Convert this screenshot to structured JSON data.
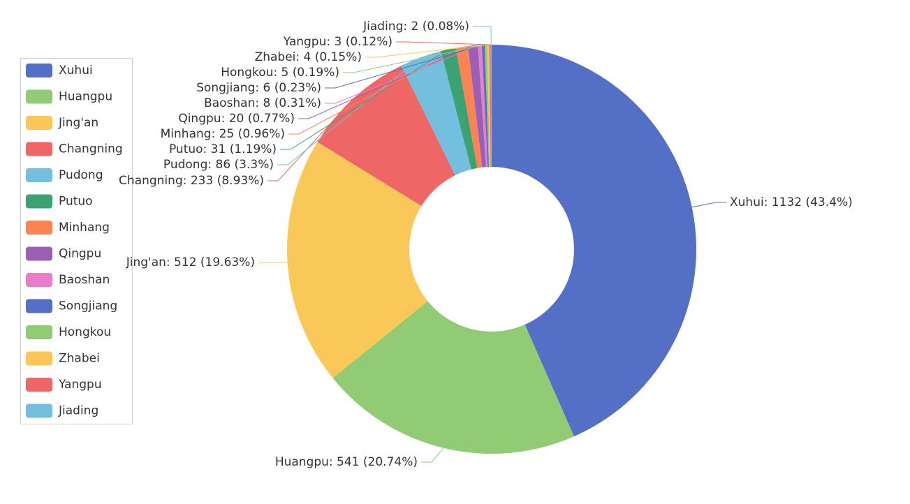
{
  "chart_data": {
    "type": "donut",
    "categories": [
      "Xuhui",
      "Huangpu",
      "Jing'an",
      "Changning",
      "Pudong",
      "Putuo",
      "Minhang",
      "Qingpu",
      "Baoshan",
      "Songjiang",
      "Hongkou",
      "Zhabei",
      "Yangpu",
      "Jiading"
    ],
    "values": [
      1132,
      541,
      512,
      233,
      86,
      31,
      25,
      20,
      8,
      6,
      5,
      4,
      3,
      2
    ],
    "value_labels": [
      "Xuhui: 1132 (43.4%)",
      "Huangpu: 541 (20.74%)",
      "Jing'an: 512 (19.63%)",
      "Changning: 233 (8.93%)",
      "Pudong: 86 (3.3%)",
      "Putuo: 31 (1.19%)",
      "Minhang: 25 (0.96%)",
      "Qingpu: 20 (0.77%)",
      "Baoshan: 8 (0.31%)",
      "Songjiang: 6 (0.23%)",
      "Hongkou: 5 (0.19%)",
      "Zhabei: 4 (0.15%)",
      "Yangpu: 3 (0.12%)",
      "Jiading: 2 (0.08%)"
    ],
    "colors": [
      "#5470c6",
      "#91cc75",
      "#fac858",
      "#ee6666",
      "#73c0de",
      "#3ba272",
      "#fc8452",
      "#9a60b4",
      "#ea7ccc",
      "#5470c6",
      "#91cc75",
      "#fac858",
      "#ee6666",
      "#73c0de"
    ],
    "legend": "left"
  }
}
